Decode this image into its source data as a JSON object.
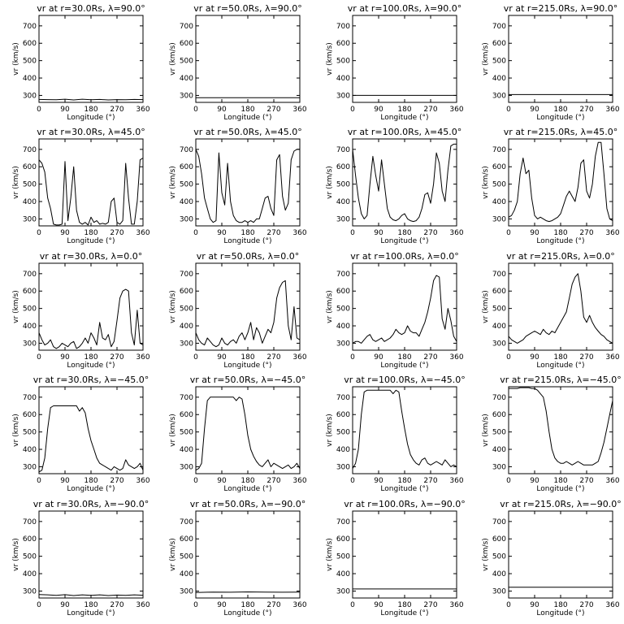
{
  "axes": {
    "x_label": "Longitude (°)",
    "y_label": "vr (km/s)",
    "x_ticks": [
      "0",
      "90",
      "180",
      "270",
      "360"
    ],
    "y_ticks": [
      "300",
      "400",
      "500",
      "600",
      "700"
    ],
    "xlim": [
      0,
      360
    ],
    "ylim": [
      260,
      760
    ]
  },
  "chart_data": [
    {
      "type": "line",
      "title": "vr at r=30.0Rs, λ=90.0°",
      "xlabel": "Longitude (°)",
      "ylabel": "vr (km/s)",
      "xlim": [
        0,
        360
      ],
      "ylim": [
        260,
        760
      ],
      "x": [
        0,
        30,
        60,
        90,
        120,
        150,
        180,
        210,
        240,
        270,
        300,
        330,
        360
      ],
      "y": [
        277,
        276,
        275,
        278,
        274,
        278,
        275,
        277,
        274,
        276,
        275,
        277,
        276
      ]
    },
    {
      "type": "line",
      "title": "vr at r=50.0Rs, λ=90.0°",
      "xlabel": "Longitude (°)",
      "ylabel": "vr (km/s)",
      "xlim": [
        0,
        360
      ],
      "ylim": [
        260,
        760
      ],
      "x": [
        0,
        360
      ],
      "y": [
        287,
        287
      ]
    },
    {
      "type": "line",
      "title": "vr at r=100.0Rs, λ=90.0°",
      "xlabel": "Longitude (°)",
      "ylabel": "vr (km/s)",
      "xlim": [
        0,
        360
      ],
      "ylim": [
        260,
        760
      ],
      "x": [
        0,
        360
      ],
      "y": [
        300,
        300
      ]
    },
    {
      "type": "line",
      "title": "vr at r=215.0Rs, λ=90.0°",
      "xlabel": "Longitude (°)",
      "ylabel": "vr (km/s)",
      "xlim": [
        0,
        360
      ],
      "ylim": [
        260,
        760
      ],
      "x": [
        0,
        360
      ],
      "y": [
        305,
        305
      ]
    },
    {
      "type": "line",
      "title": "vr at r=30.0Rs, λ=45.0°",
      "xlabel": "Longitude (°)",
      "ylabel": "vr (km/s)",
      "xlim": [
        0,
        360
      ],
      "ylim": [
        260,
        760
      ],
      "x": [
        0,
        10,
        20,
        30,
        40,
        50,
        60,
        70,
        80,
        90,
        100,
        110,
        120,
        130,
        140,
        150,
        160,
        170,
        180,
        190,
        200,
        210,
        220,
        230,
        240,
        250,
        260,
        270,
        280,
        290,
        300,
        310,
        320,
        330,
        340,
        350,
        360
      ],
      "y": [
        640,
        620,
        570,
        420,
        360,
        270,
        265,
        265,
        270,
        630,
        290,
        420,
        600,
        350,
        280,
        270,
        280,
        265,
        310,
        280,
        290,
        270,
        275,
        270,
        280,
        400,
        420,
        280,
        270,
        290,
        620,
        420,
        270,
        270,
        400,
        640,
        650
      ]
    },
    {
      "type": "line",
      "title": "vr at r=50.0Rs, λ=45.0°",
      "xlabel": "Longitude (°)",
      "ylabel": "vr (km/s)",
      "xlim": [
        0,
        360
      ],
      "ylim": [
        260,
        760
      ],
      "x": [
        0,
        10,
        20,
        30,
        40,
        50,
        60,
        70,
        80,
        90,
        100,
        110,
        120,
        130,
        140,
        150,
        160,
        170,
        180,
        190,
        200,
        210,
        220,
        230,
        240,
        250,
        260,
        270,
        280,
        290,
        300,
        310,
        320,
        330,
        340,
        350,
        360
      ],
      "y": [
        700,
        660,
        560,
        420,
        360,
        300,
        280,
        290,
        680,
        450,
        380,
        620,
        400,
        320,
        290,
        280,
        280,
        290,
        280,
        290,
        280,
        300,
        300,
        360,
        420,
        430,
        360,
        320,
        640,
        670,
        430,
        350,
        390,
        640,
        690,
        700,
        700
      ]
    },
    {
      "type": "line",
      "title": "vr at r=100.0Rs, λ=45.0°",
      "xlabel": "Longitude (°)",
      "ylabel": "vr (km/s)",
      "xlim": [
        0,
        360
      ],
      "ylim": [
        260,
        760
      ],
      "x": [
        0,
        10,
        20,
        30,
        40,
        50,
        60,
        70,
        80,
        90,
        100,
        110,
        120,
        130,
        140,
        150,
        160,
        170,
        180,
        190,
        200,
        210,
        220,
        230,
        240,
        250,
        260,
        270,
        280,
        290,
        300,
        310,
        320,
        330,
        340,
        350,
        360
      ],
      "y": [
        700,
        550,
        420,
        330,
        300,
        320,
        500,
        660,
        550,
        460,
        640,
        500,
        360,
        310,
        295,
        290,
        300,
        320,
        330,
        300,
        290,
        285,
        290,
        310,
        360,
        440,
        450,
        390,
        500,
        680,
        620,
        460,
        400,
        580,
        720,
        730,
        730
      ]
    },
    {
      "type": "line",
      "title": "vr at r=215.0Rs, λ=45.0°",
      "xlabel": "Longitude (°)",
      "ylabel": "vr (km/s)",
      "xlim": [
        0,
        360
      ],
      "ylim": [
        260,
        760
      ],
      "x": [
        0,
        10,
        20,
        30,
        40,
        50,
        60,
        70,
        80,
        90,
        100,
        110,
        120,
        130,
        140,
        150,
        160,
        170,
        180,
        190,
        200,
        210,
        220,
        230,
        240,
        250,
        260,
        270,
        280,
        290,
        300,
        310,
        320,
        330,
        340,
        350,
        360
      ],
      "y": [
        310,
        320,
        350,
        400,
        560,
        650,
        560,
        580,
        420,
        320,
        300,
        310,
        300,
        290,
        285,
        290,
        300,
        310,
        330,
        380,
        430,
        460,
        430,
        400,
        480,
        620,
        640,
        460,
        420,
        500,
        660,
        740,
        740,
        560,
        360,
        300,
        290
      ]
    },
    {
      "type": "line",
      "title": "vr at r=30.0Rs, λ=0.0°",
      "xlabel": "Longitude (°)",
      "ylabel": "vr (km/s)",
      "xlim": [
        0,
        360
      ],
      "ylim": [
        260,
        760
      ],
      "x": [
        0,
        10,
        20,
        30,
        40,
        50,
        60,
        70,
        80,
        90,
        100,
        110,
        120,
        130,
        140,
        150,
        160,
        170,
        180,
        190,
        200,
        210,
        220,
        230,
        240,
        250,
        260,
        270,
        280,
        290,
        300,
        310,
        320,
        330,
        340,
        350,
        360
      ],
      "y": [
        360,
        320,
        290,
        300,
        320,
        280,
        270,
        280,
        300,
        290,
        280,
        300,
        310,
        270,
        280,
        300,
        330,
        300,
        360,
        330,
        290,
        420,
        330,
        320,
        350,
        280,
        310,
        430,
        560,
        600,
        610,
        600,
        360,
        290,
        490,
        300,
        290
      ]
    },
    {
      "type": "line",
      "title": "vr at r=50.0Rs, λ=0.0°",
      "xlabel": "Longitude (°)",
      "ylabel": "vr (km/s)",
      "xlim": [
        0,
        360
      ],
      "ylim": [
        260,
        760
      ],
      "x": [
        0,
        10,
        20,
        30,
        40,
        50,
        60,
        70,
        80,
        90,
        100,
        110,
        120,
        130,
        140,
        150,
        160,
        170,
        180,
        190,
        200,
        210,
        220,
        230,
        240,
        250,
        260,
        270,
        280,
        290,
        300,
        310,
        320,
        330,
        340,
        350,
        360
      ],
      "y": [
        360,
        320,
        300,
        290,
        330,
        310,
        290,
        280,
        290,
        330,
        300,
        290,
        310,
        320,
        300,
        340,
        360,
        320,
        360,
        420,
        320,
        390,
        360,
        300,
        340,
        380,
        360,
        420,
        560,
        620,
        650,
        660,
        400,
        320,
        510,
        330,
        320
      ]
    },
    {
      "type": "line",
      "title": "vr at r=100.0Rs, λ=0.0°",
      "xlabel": "Longitude (°)",
      "ylabel": "vr (km/s)",
      "xlim": [
        0,
        360
      ],
      "ylim": [
        260,
        760
      ],
      "x": [
        0,
        10,
        20,
        30,
        40,
        50,
        60,
        70,
        80,
        90,
        100,
        110,
        120,
        130,
        140,
        150,
        160,
        170,
        180,
        190,
        200,
        210,
        220,
        230,
        240,
        250,
        260,
        270,
        280,
        290,
        300,
        310,
        320,
        330,
        340,
        350,
        360
      ],
      "y": [
        300,
        310,
        310,
        300,
        320,
        340,
        350,
        320,
        310,
        320,
        330,
        310,
        320,
        330,
        350,
        380,
        360,
        350,
        360,
        400,
        370,
        360,
        360,
        340,
        380,
        420,
        480,
        560,
        660,
        690,
        680,
        440,
        380,
        500,
        430,
        340,
        310
      ]
    },
    {
      "type": "line",
      "title": "vr at r=215.0Rs, λ=0.0°",
      "xlabel": "Longitude (°)",
      "ylabel": "vr (km/s)",
      "xlim": [
        0,
        360
      ],
      "ylim": [
        260,
        760
      ],
      "x": [
        0,
        10,
        20,
        30,
        40,
        50,
        60,
        70,
        80,
        90,
        100,
        110,
        120,
        130,
        140,
        150,
        160,
        170,
        180,
        190,
        200,
        210,
        220,
        230,
        240,
        250,
        260,
        270,
        280,
        290,
        300,
        310,
        320,
        330,
        340,
        350,
        360
      ],
      "y": [
        340,
        320,
        310,
        300,
        310,
        320,
        340,
        350,
        360,
        370,
        360,
        350,
        380,
        360,
        350,
        370,
        360,
        390,
        420,
        450,
        480,
        560,
        640,
        680,
        700,
        600,
        450,
        420,
        460,
        420,
        390,
        370,
        350,
        340,
        320,
        310,
        300
      ]
    },
    {
      "type": "line",
      "title": "vr at r=30.0Rs, λ=−45.0°",
      "xlabel": "Longitude (°)",
      "ylabel": "vr (km/s)",
      "xlim": [
        0,
        360
      ],
      "ylim": [
        260,
        760
      ],
      "x": [
        0,
        10,
        20,
        30,
        40,
        50,
        60,
        70,
        80,
        90,
        100,
        110,
        120,
        130,
        140,
        150,
        160,
        170,
        180,
        190,
        200,
        210,
        220,
        230,
        240,
        250,
        260,
        270,
        280,
        290,
        300,
        310,
        320,
        330,
        340,
        350,
        360
      ],
      "y": [
        270,
        280,
        350,
        520,
        640,
        650,
        650,
        650,
        650,
        650,
        650,
        650,
        650,
        650,
        620,
        640,
        610,
        520,
        450,
        400,
        350,
        320,
        310,
        300,
        290,
        280,
        300,
        290,
        280,
        290,
        340,
        310,
        300,
        290,
        300,
        320,
        280
      ]
    },
    {
      "type": "line",
      "title": "vr at r=50.0Rs, λ=−45.0°",
      "xlabel": "Longitude (°)",
      "ylabel": "vr (km/s)",
      "xlim": [
        0,
        360
      ],
      "ylim": [
        260,
        760
      ],
      "x": [
        0,
        10,
        20,
        30,
        40,
        50,
        60,
        70,
        80,
        90,
        100,
        110,
        120,
        130,
        140,
        150,
        160,
        170,
        180,
        190,
        200,
        210,
        220,
        230,
        240,
        250,
        260,
        270,
        280,
        290,
        300,
        310,
        320,
        330,
        340,
        350,
        360
      ],
      "y": [
        280,
        290,
        320,
        520,
        680,
        700,
        700,
        700,
        700,
        700,
        700,
        700,
        700,
        700,
        680,
        700,
        690,
        600,
        480,
        400,
        360,
        330,
        310,
        300,
        320,
        340,
        300,
        320,
        310,
        300,
        290,
        300,
        310,
        290,
        300,
        320,
        290
      ]
    },
    {
      "type": "line",
      "title": "vr at r=100.0Rs, λ=−45.0°",
      "xlabel": "Longitude (°)",
      "ylabel": "vr (km/s)",
      "xlim": [
        0,
        360
      ],
      "ylim": [
        260,
        760
      ],
      "x": [
        0,
        10,
        20,
        30,
        40,
        50,
        60,
        70,
        80,
        90,
        100,
        110,
        120,
        130,
        140,
        150,
        160,
        170,
        180,
        190,
        200,
        210,
        220,
        230,
        240,
        250,
        260,
        270,
        280,
        290,
        300,
        310,
        320,
        330,
        340,
        350,
        360
      ],
      "y": [
        290,
        320,
        400,
        600,
        730,
        740,
        740,
        740,
        740,
        740,
        740,
        740,
        740,
        740,
        720,
        740,
        730,
        620,
        520,
        430,
        370,
        340,
        320,
        310,
        340,
        350,
        320,
        310,
        320,
        330,
        320,
        310,
        340,
        320,
        300,
        310,
        300
      ]
    },
    {
      "type": "line",
      "title": "vr at r=215.0Rs, λ=−45.0°",
      "xlabel": "Longitude (°)",
      "ylabel": "vr (km/s)",
      "xlim": [
        0,
        360
      ],
      "ylim": [
        260,
        760
      ],
      "x": [
        0,
        10,
        20,
        30,
        40,
        50,
        60,
        70,
        80,
        90,
        100,
        110,
        120,
        130,
        140,
        150,
        160,
        170,
        180,
        190,
        200,
        210,
        220,
        230,
        240,
        250,
        260,
        270,
        280,
        290,
        300,
        310,
        320,
        330,
        340,
        350,
        360
      ],
      "y": [
        750,
        750,
        750,
        750,
        755,
        755,
        755,
        755,
        750,
        750,
        740,
        720,
        700,
        620,
        500,
        400,
        350,
        330,
        320,
        320,
        330,
        320,
        310,
        320,
        330,
        320,
        310,
        310,
        310,
        310,
        320,
        330,
        380,
        440,
        520,
        600,
        680
      ]
    },
    {
      "type": "line",
      "title": "vr at r=30.0Rs, λ=−90.0°",
      "xlabel": "Longitude (°)",
      "ylabel": "vr (km/s)",
      "xlim": [
        0,
        360
      ],
      "ylim": [
        260,
        760
      ],
      "x": [
        0,
        30,
        60,
        90,
        120,
        150,
        180,
        210,
        240,
        270,
        300,
        330,
        360
      ],
      "y": [
        280,
        278,
        275,
        279,
        274,
        278,
        275,
        278,
        274,
        277,
        275,
        278,
        276
      ]
    },
    {
      "type": "line",
      "title": "vr at r=50.0Rs, λ=−90.0°",
      "xlabel": "Longitude (°)",
      "ylabel": "vr (km/s)",
      "xlim": [
        0,
        360
      ],
      "ylim": [
        260,
        760
      ],
      "x": [
        0,
        60,
        120,
        180,
        240,
        300,
        360
      ],
      "y": [
        292,
        294,
        293,
        295,
        294,
        293,
        294
      ]
    },
    {
      "type": "line",
      "title": "vr at r=100.0Rs, λ=−90.0°",
      "xlabel": "Longitude (°)",
      "ylabel": "vr (km/s)",
      "xlim": [
        0,
        360
      ],
      "ylim": [
        260,
        760
      ],
      "x": [
        0,
        360
      ],
      "y": [
        312,
        312
      ]
    },
    {
      "type": "line",
      "title": "vr at r=215.0Rs, λ=−90.0°",
      "xlabel": "Longitude (°)",
      "ylabel": "vr (km/s)",
      "xlim": [
        0,
        360
      ],
      "ylim": [
        260,
        760
      ],
      "x": [
        0,
        360
      ],
      "y": [
        322,
        322
      ]
    }
  ]
}
